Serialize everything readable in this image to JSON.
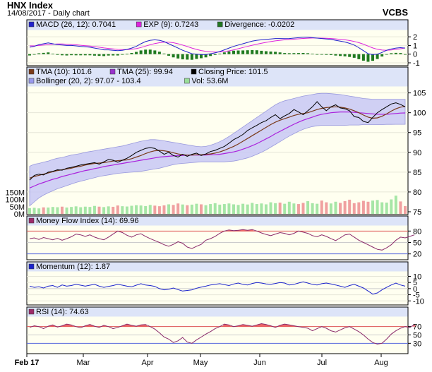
{
  "header": {
    "title": "HNX Index",
    "subtitle": "14/08/2017 - Daily chart",
    "source": "VCBS"
  },
  "chart_data": [
    {
      "type": "bar",
      "title": "MACD",
      "legend": [
        {
          "text": "MACD (26, 12): 0.7041",
          "color": "#2222cc"
        },
        {
          "text": "EXP (9): 0.7243",
          "color": "#dd22dd"
        },
        {
          "text": "Divergence: -0.0202",
          "color": "#227722"
        }
      ],
      "ylim": [
        -1,
        2.5
      ],
      "yticks": [
        "2",
        "1",
        "0",
        "-1"
      ],
      "macd": [
        0.8,
        0.9,
        1.1,
        1.2,
        1.3,
        1.2,
        1.1,
        1.05,
        1.0,
        1.0,
        0.95,
        0.9,
        0.85,
        0.8,
        0.7,
        0.6,
        0.5,
        0.5,
        0.45,
        0.4,
        0.45,
        0.55,
        0.7,
        0.9,
        1.2,
        1.45,
        1.6,
        1.65,
        1.6,
        1.45,
        1.2,
        0.95,
        0.7,
        0.45,
        0.25,
        0.05,
        0.0,
        -0.05,
        -0.05,
        0.05,
        0.15,
        0.3,
        0.5,
        0.7,
        0.9,
        1.05,
        1.2,
        1.35,
        1.5,
        1.6,
        1.65,
        1.7,
        1.75,
        1.8,
        1.8,
        1.78,
        1.8,
        1.85,
        1.9,
        1.95,
        1.95,
        1.9,
        1.85,
        1.8,
        1.75,
        1.7,
        1.6,
        1.5,
        1.4,
        1.25,
        1.05,
        0.75,
        0.4,
        0.05,
        -0.05,
        0.0,
        0.2,
        0.45,
        0.6,
        0.7,
        0.75,
        0.7
      ],
      "exp": [
        0.95,
        0.95,
        1.0,
        1.05,
        1.1,
        1.15,
        1.18,
        1.18,
        1.15,
        1.12,
        1.08,
        1.03,
        0.98,
        0.93,
        0.87,
        0.8,
        0.72,
        0.66,
        0.6,
        0.55,
        0.52,
        0.52,
        0.56,
        0.64,
        0.77,
        0.93,
        1.08,
        1.22,
        1.32,
        1.38,
        1.38,
        1.32,
        1.2,
        1.05,
        0.88,
        0.7,
        0.55,
        0.42,
        0.32,
        0.26,
        0.24,
        0.25,
        0.3,
        0.38,
        0.5,
        0.63,
        0.77,
        0.9,
        1.03,
        1.15,
        1.26,
        1.36,
        1.45,
        1.53,
        1.6,
        1.65,
        1.69,
        1.73,
        1.77,
        1.81,
        1.84,
        1.86,
        1.86,
        1.85,
        1.83,
        1.8,
        1.76,
        1.71,
        1.65,
        1.57,
        1.47,
        1.33,
        1.15,
        0.93,
        0.72,
        0.56,
        0.47,
        0.45,
        0.49,
        0.55,
        0.62,
        0.72
      ],
      "divergence": [
        -0.15,
        -0.05,
        0.1,
        0.15,
        0.2,
        0.05,
        -0.08,
        -0.13,
        -0.15,
        -0.12,
        -0.13,
        -0.13,
        -0.13,
        -0.13,
        -0.17,
        -0.2,
        -0.22,
        -0.16,
        -0.15,
        -0.15,
        -0.07,
        0.03,
        0.14,
        0.26,
        0.43,
        0.52,
        0.52,
        0.43,
        0.28,
        0.07,
        -0.18,
        -0.37,
        -0.5,
        -0.6,
        -0.63,
        -0.65,
        -0.55,
        -0.47,
        -0.37,
        -0.21,
        -0.09,
        0.05,
        0.2,
        0.32,
        0.4,
        0.42,
        0.43,
        0.45,
        0.47,
        0.45,
        0.39,
        0.34,
        0.3,
        0.27,
        0.2,
        0.13,
        0.11,
        0.12,
        0.13,
        0.14,
        0.11,
        0.04,
        -0.01,
        -0.05,
        -0.08,
        -0.1,
        -0.16,
        -0.21,
        -0.25,
        -0.32,
        -0.42,
        -0.58,
        -0.75,
        -0.88,
        -0.77,
        -0.56,
        -0.27,
        0.0,
        0.11,
        0.15,
        0.13,
        -0.02
      ]
    },
    {
      "type": "line",
      "title": "Price",
      "legend": [
        {
          "text": "TMA (10): 101.6",
          "color": "#7a3a1a"
        },
        {
          "text": "TMA (25): 99.94",
          "color": "#9933cc"
        },
        {
          "text": "Closing Price: 101.5",
          "color": "#000000"
        },
        {
          "text": "Bollinger (20, 2): 97.07 - 103.4",
          "color": "#9999ee"
        },
        {
          "text": "Vol: 53.6M",
          "color": "#99dd99"
        }
      ],
      "ylim": [
        75,
        106
      ],
      "yticks": [
        "105",
        "100",
        "95",
        "90",
        "85",
        "80",
        "75"
      ],
      "volume_ticks": [
        "150M",
        "100M",
        "50M",
        "0M"
      ],
      "volume_max": 200,
      "close": [
        83,
        84.2,
        84.5,
        84.3,
        85,
        85.2,
        85.6,
        85.5,
        86,
        86.2,
        86.5,
        86.8,
        87,
        87.2,
        87.4,
        87,
        87.6,
        88.2,
        88,
        87.5,
        88,
        88.5,
        89.2,
        90,
        90.5,
        91,
        91.2,
        91,
        90.3,
        89.5,
        90,
        89.2,
        88.8,
        89.5,
        89,
        89.5,
        89.8,
        89.2,
        89.6,
        90.2,
        90.5,
        91,
        91.5,
        92.3,
        93.2,
        93.8,
        94.5,
        95.5,
        96.2,
        96.8,
        97.5,
        98,
        98.8,
        99.5,
        98.5,
        99.2,
        99.8,
        100.8,
        100.2,
        99.5,
        100.5,
        101.5,
        102.8,
        101.5,
        100.5,
        101.5,
        102,
        101.2,
        101,
        100.5,
        99,
        98.8,
        97.8,
        97.5,
        98.8,
        100,
        100.8,
        101.5,
        102.2,
        102.5,
        102.1,
        101.5
      ],
      "tma10": [
        83.5,
        83.9,
        84.2,
        84.5,
        84.8,
        85.1,
        85.4,
        85.6,
        85.8,
        86,
        86.3,
        86.5,
        86.8,
        87,
        87.2,
        87.3,
        87.4,
        87.6,
        87.8,
        87.9,
        88,
        88.1,
        88.4,
        88.8,
        89.2,
        89.7,
        90.1,
        90.4,
        90.5,
        90.4,
        90.2,
        89.9,
        89.6,
        89.4,
        89.3,
        89.3,
        89.4,
        89.4,
        89.5,
        89.6,
        89.8,
        90.1,
        90.5,
        91,
        91.5,
        92.1,
        92.8,
        93.5,
        94.2,
        94.9,
        95.6,
        96.3,
        97,
        97.6,
        98.1,
        98.5,
        98.9,
        99.3,
        99.6,
        99.8,
        100,
        100.4,
        100.8,
        101.1,
        101.3,
        101.4,
        101.5,
        101.4,
        101.2,
        100.9,
        100.5,
        100,
        99.4,
        98.9,
        98.6,
        98.7,
        99.1,
        99.7,
        100.4,
        101,
        101.4,
        101.6
      ],
      "tma25": [
        81,
        81.5,
        82,
        82.4,
        82.8,
        83.2,
        83.5,
        83.9,
        84.2,
        84.5,
        84.8,
        85.1,
        85.4,
        85.6,
        85.9,
        86.1,
        86.4,
        86.6,
        86.8,
        87,
        87.2,
        87.4,
        87.6,
        87.8,
        88,
        88.2,
        88.4,
        88.6,
        88.8,
        88.9,
        89,
        89.1,
        89.2,
        89.2,
        89.3,
        89.3,
        89.3,
        89.3,
        89.3,
        89.4,
        89.4,
        89.5,
        89.7,
        89.9,
        90.1,
        90.4,
        90.8,
        91.2,
        91.7,
        92.2,
        92.8,
        93.4,
        94,
        94.7,
        95.3,
        95.9,
        96.5,
        97.1,
        97.6,
        98.1,
        98.5,
        98.9,
        99.3,
        99.6,
        99.8,
        100,
        100.1,
        100.2,
        100.2,
        100.2,
        100.1,
        100,
        99.9,
        99.8,
        99.7,
        99.6,
        99.6,
        99.6,
        99.7,
        99.8,
        99.9,
        99.94
      ],
      "bb_upper": [
        86.5,
        87,
        87.2,
        87.5,
        87.8,
        88.2,
        88.5,
        88.7,
        89,
        89.3,
        89.5,
        89.7,
        90,
        90.2,
        90.4,
        90.6,
        90.8,
        91,
        91.2,
        91.4,
        91.6,
        91.9,
        92.2,
        92.5,
        92.8,
        93,
        93.2,
        93.2,
        93.1,
        92.9,
        92.7,
        92.5,
        92.3,
        92.1,
        91.9,
        91.7,
        91.5,
        91.4,
        91.5,
        91.8,
        92.2,
        92.7,
        93.3,
        94,
        94.8,
        95.6,
        96.4,
        97.2,
        98,
        98.8,
        99.6,
        100.4,
        101.2,
        102,
        102.6,
        103,
        103.3,
        103.6,
        103.9,
        104.2,
        104.4,
        104.6,
        104.8,
        104.9,
        104.9,
        104.8,
        104.7,
        104.6,
        104.4,
        104.2,
        104,
        103.8,
        103.6,
        103.5,
        103.4,
        103.4,
        103.4,
        103.4,
        103.4,
        103.4,
        103.4,
        103.4
      ],
      "bb_lower": [
        76.5,
        77.5,
        78.5,
        79.2,
        79.8,
        80.3,
        80.8,
        81.2,
        81.6,
        82,
        82.4,
        82.7,
        83,
        83.3,
        83.6,
        83.9,
        84.1,
        84.3,
        84.5,
        84.7,
        84.8,
        84.9,
        85,
        85.1,
        85.2,
        85.4,
        85.6,
        85.8,
        86,
        86.3,
        86.6,
        86.9,
        87.1,
        87.2,
        87.3,
        87.4,
        87.5,
        87.6,
        87.6,
        87.6,
        87.6,
        87.6,
        87.6,
        87.7,
        87.8,
        88,
        88.3,
        88.6,
        89,
        89.5,
        90,
        90.6,
        91.3,
        92,
        92.7,
        93.4,
        94.1,
        94.7,
        95.3,
        95.8,
        96.2,
        96.5,
        96.7,
        96.8,
        96.8,
        96.8,
        96.8,
        96.8,
        96.8,
        96.9,
        96.9,
        96.9,
        97,
        97,
        97,
        97,
        97,
        97.05,
        97.05,
        97.07,
        97.07,
        97.07
      ],
      "volume": [
        40,
        42,
        38,
        45,
        44,
        48,
        46,
        50,
        44,
        48,
        52,
        46,
        50,
        48,
        55,
        50,
        47,
        52,
        49,
        58,
        53,
        51,
        56,
        60,
        58,
        54,
        62,
        57,
        53,
        59,
        66,
        62,
        72,
        65,
        60,
        64,
        70,
        66,
        60,
        68,
        74,
        64,
        68,
        72,
        66,
        62,
        70,
        65,
        76,
        68,
        72,
        66,
        80,
        74,
        78,
        70,
        84,
        72,
        68,
        76,
        88,
        74,
        70,
        92,
        80,
        72,
        84,
        76,
        88,
        98,
        74,
        80,
        90,
        84,
        92,
        96,
        80,
        78,
        100,
        126,
        86,
        54
      ]
    },
    {
      "type": "line",
      "title": "Money Flow Index",
      "legend": [
        {
          "text": "Money Flow Index (14): 69.96",
          "color": "#9c2a6a"
        }
      ],
      "ylim": [
        12,
        88
      ],
      "yticks": [
        "80",
        "50",
        "20"
      ],
      "values": [
        60,
        62,
        58,
        63,
        60,
        57,
        61,
        56,
        60,
        65,
        72,
        70,
        66,
        70,
        64,
        60,
        57,
        64,
        72,
        80,
        76,
        69,
        64,
        70,
        73,
        66,
        60,
        55,
        50,
        44,
        40,
        45,
        52,
        48,
        38,
        34,
        40,
        45,
        56,
        60,
        66,
        74,
        80,
        83,
        81,
        82,
        84,
        82,
        84,
        80,
        75,
        71,
        68,
        72,
        76,
        74,
        70,
        74,
        80,
        77,
        74,
        68,
        65,
        70,
        66,
        60,
        55,
        62,
        70,
        72,
        64,
        56,
        50,
        44,
        38,
        32,
        30,
        36,
        44,
        56,
        64,
        62,
        66,
        70
      ]
    },
    {
      "type": "line",
      "title": "Momentum",
      "legend": [
        {
          "text": "Momentum (12): 1.87",
          "color": "#1a22cc"
        }
      ],
      "ylim": [
        -11,
        12
      ],
      "yticks": [
        "10",
        "5",
        "0",
        "-5",
        "-10"
      ],
      "values": [
        2,
        1,
        1.5,
        0.5,
        2,
        2.5,
        1,
        3,
        2,
        2.5,
        3.5,
        2.8,
        2,
        2.8,
        3.5,
        2,
        1,
        1.8,
        2.5,
        3.5,
        2.8,
        2,
        1.5,
        2.8,
        4,
        3,
        2.5,
        1.8,
        0,
        -1,
        -0.5,
        0.5,
        -0.8,
        -2,
        -1.5,
        -1,
        0.3,
        1.2,
        2,
        3,
        3.5,
        4,
        3.2,
        2.5,
        3.8,
        4.5,
        3.5,
        3,
        4.2,
        5,
        4.5,
        3.8,
        3.5,
        4.2,
        5,
        4.5,
        3,
        3.5,
        4.5,
        5.5,
        4.5,
        3.5,
        3,
        4,
        4.5,
        3.8,
        3,
        2,
        1,
        2.5,
        3.5,
        2,
        0.5,
        -2,
        -4.5,
        -3.5,
        -1,
        1,
        3,
        4.5,
        3,
        2
      ]
    },
    {
      "type": "area",
      "title": "RSI",
      "legend": [
        {
          "text": "RSI (14): 74.63",
          "color": "#9c2a6a"
        }
      ],
      "ylim": [
        12,
        88
      ],
      "yticks": [
        "70",
        "50",
        "30"
      ],
      "values": [
        68,
        72,
        70,
        65,
        71,
        74,
        69,
        72,
        76,
        74,
        70,
        67,
        72,
        75,
        71,
        68,
        73,
        70,
        65,
        68,
        72,
        76,
        73,
        71,
        74,
        75,
        70,
        64,
        55,
        45,
        40,
        32,
        36,
        44,
        33,
        30,
        38,
        45,
        52,
        58,
        65,
        70,
        76,
        74,
        70,
        72,
        75,
        73,
        71,
        74,
        77,
        75,
        72,
        68,
        73,
        76,
        74,
        72,
        70,
        68,
        66,
        60,
        65,
        70,
        66,
        60,
        57,
        62,
        67,
        70,
        64,
        58,
        50,
        40,
        32,
        28,
        30,
        40,
        52,
        60,
        66,
        70,
        68,
        74.6
      ]
    }
  ],
  "xaxis_labels": [
    "Feb 17",
    "Mar",
    "Apr",
    "May",
    "Jun",
    "Jul",
    "Aug"
  ]
}
